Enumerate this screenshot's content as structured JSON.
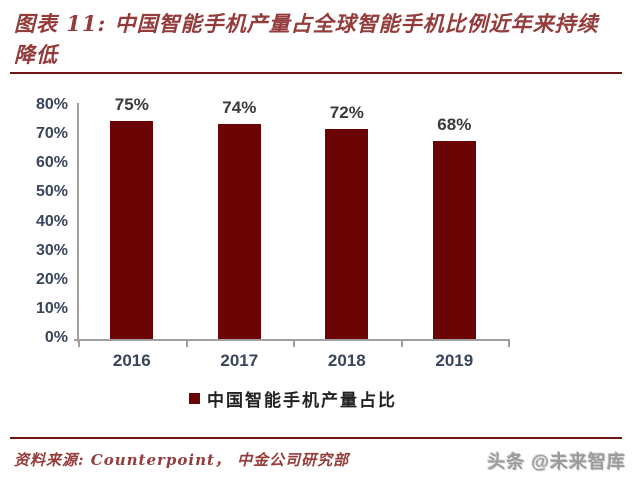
{
  "figure": {
    "title": "图表 11:  中国智能手机产量占全球智能手机比例近年来持续降低",
    "source": "资料来源: Counterpoint， 中金公司研究部",
    "watermark": "头条 @未来智库"
  },
  "colors": {
    "bar": "#6b0404",
    "title_text": "#943b3b",
    "rule_line": "#6e1616",
    "axis_line": "#a0a0a0",
    "axis_label": "#39455a",
    "value_label": "#3a3a3a",
    "source_text": "#943b3b",
    "watermark_text": "#9b9b9b"
  },
  "chart_data": {
    "type": "bar",
    "title": "中国智能手机产量占全球智能手机比例近年来持续降低",
    "categories": [
      "2016",
      "2017",
      "2018",
      "2019"
    ],
    "values": [
      75,
      74,
      72,
      68
    ],
    "value_labels": [
      "75%",
      "74%",
      "72%",
      "68%"
    ],
    "xlabel": "",
    "ylabel": "",
    "ylim": [
      0,
      80
    ],
    "ytick_step": 10,
    "ytick_labels": [
      "0%",
      "10%",
      "20%",
      "30%",
      "40%",
      "50%",
      "60%",
      "70%",
      "80%"
    ],
    "grid": false,
    "legend": {
      "position": "bottom",
      "label": "中国智能手机产量占比"
    }
  }
}
